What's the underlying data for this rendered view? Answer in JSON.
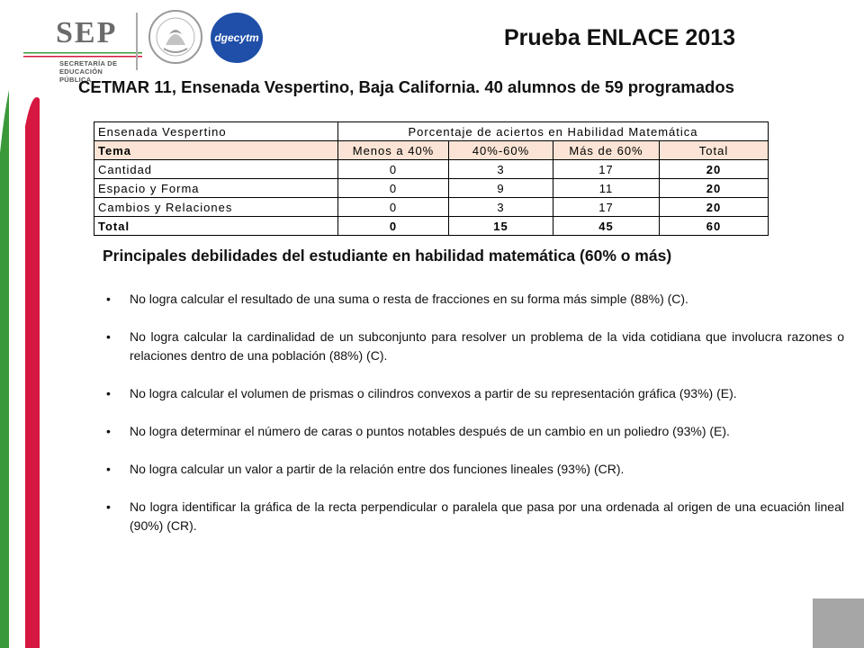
{
  "header": {
    "title": "Prueba ENLACE 2013",
    "subtitle": "CETMAR 11, Ensenada Vespertino, Baja California. 40 alumnos de 59 programados"
  },
  "logos": {
    "sep_word": "SEP",
    "sep_line1": "SECRETARÍA DE",
    "sep_line2": "EDUCACIÓN PÚBLICA",
    "seal_icon": "mexican-national-seal-icon",
    "dgec_text": "dgecytm"
  },
  "table": {
    "corner": "Ensenada Vespertino",
    "group_header": "Porcentaje de aciertos en Habilidad Matemática",
    "columns": [
      "Tema",
      "Menos a 40%",
      "40%-60%",
      "Más de 60%",
      "Total"
    ],
    "rows": [
      {
        "tema": "Cantidad",
        "menos40": "0",
        "r4060": "3",
        "mas60": "17",
        "total": "20"
      },
      {
        "tema": "Espacio y Forma",
        "menos40": "0",
        "r4060": "9",
        "mas60": "11",
        "total": "20"
      },
      {
        "tema": "Cambios y Relaciones",
        "menos40": "0",
        "r4060": "3",
        "mas60": "17",
        "total": "20"
      }
    ],
    "total_row": {
      "tema": "Total",
      "menos40": "0",
      "r4060": "15",
      "mas60": "45",
      "total": "60"
    }
  },
  "weaknesses": {
    "title": "Principales debilidades del estudiante en habilidad matemática (60% o más)",
    "items": [
      "No logra calcular el resultado de una suma o resta de fracciones en su forma más simple (88%) (C).",
      "No logra calcular la cardinalidad de un subconjunto para resolver un problema de la vida cotidiana que involucra razones o relaciones dentro de una población (88%) (C).",
      "No logra calcular el volumen de prismas o cilindros convexos a partir de su representación gráfica (93%) (E).",
      "No logra determinar el número de caras o puntos notables después de un cambio en un poliedro (93%) (E).",
      "No logra calcular un valor a partir de la relación entre dos funciones lineales (93%) (CR).",
      "No logra identificar la gráfica de la recta perpendicular o paralela que pasa por una ordenada al origen de una ecuación lineal (90%) (CR)."
    ]
  },
  "colors": {
    "red": "#d6173f",
    "green": "#3a9a3a",
    "peach": "#fbe4d5",
    "grey": "#a6a6a6",
    "dgec_blue": "#1f4fa8"
  }
}
